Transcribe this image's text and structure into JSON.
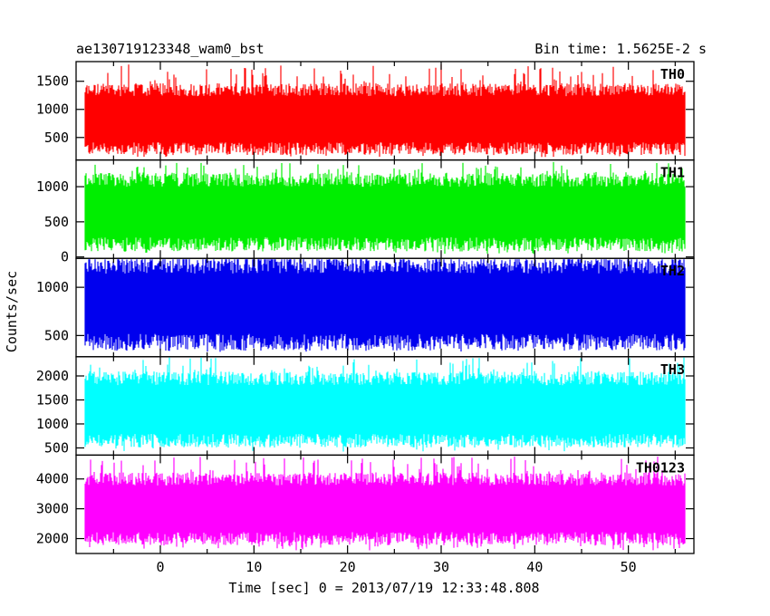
{
  "header": {
    "left_title": "ae130719123348_wam0_bst",
    "right_title": "Bin time: 1.5625E-2 s"
  },
  "chart_data": {
    "type": "line",
    "ylabel": "Counts/sec",
    "xlabel": "Time [sec] 0 = 2013/07/19 12:33:48.808",
    "xlim": [
      -9,
      57
    ],
    "x_data_range": [
      -8,
      56
    ],
    "xticks": [
      0,
      10,
      20,
      30,
      40,
      50
    ],
    "panels": [
      {
        "label": "TH0",
        "color": "#ff0000",
        "ylim": [
          100,
          1850
        ],
        "yticks": [
          500,
          1000,
          1500
        ],
        "typical_range": [
          300,
          1350
        ],
        "spike_range": [
          150,
          1800
        ]
      },
      {
        "label": "TH1",
        "color": "#00ee00",
        "ylim": [
          -20,
          1380
        ],
        "yticks": [
          0,
          500,
          1000
        ],
        "typical_range": [
          180,
          1100
        ],
        "spike_range": [
          40,
          1350
        ]
      },
      {
        "label": "TH2",
        "color": "#0000ee",
        "ylim": [
          280,
          1300
        ],
        "yticks": [
          500,
          1000
        ],
        "typical_range": [
          430,
          1230
        ],
        "spike_range": [
          330,
          1300
        ]
      },
      {
        "label": "TH3",
        "color": "#00ffff",
        "ylim": [
          350,
          2400
        ],
        "yticks": [
          500,
          1000,
          1500,
          2000
        ],
        "typical_range": [
          650,
          1950
        ],
        "spike_range": [
          420,
          2400
        ]
      },
      {
        "label": "TH0123",
        "color": "#ff00ff",
        "ylim": [
          1500,
          4800
        ],
        "yticks": [
          2000,
          3000,
          4000
        ],
        "typical_range": [
          2000,
          4000
        ],
        "spike_range": [
          1600,
          4750
        ]
      }
    ]
  }
}
